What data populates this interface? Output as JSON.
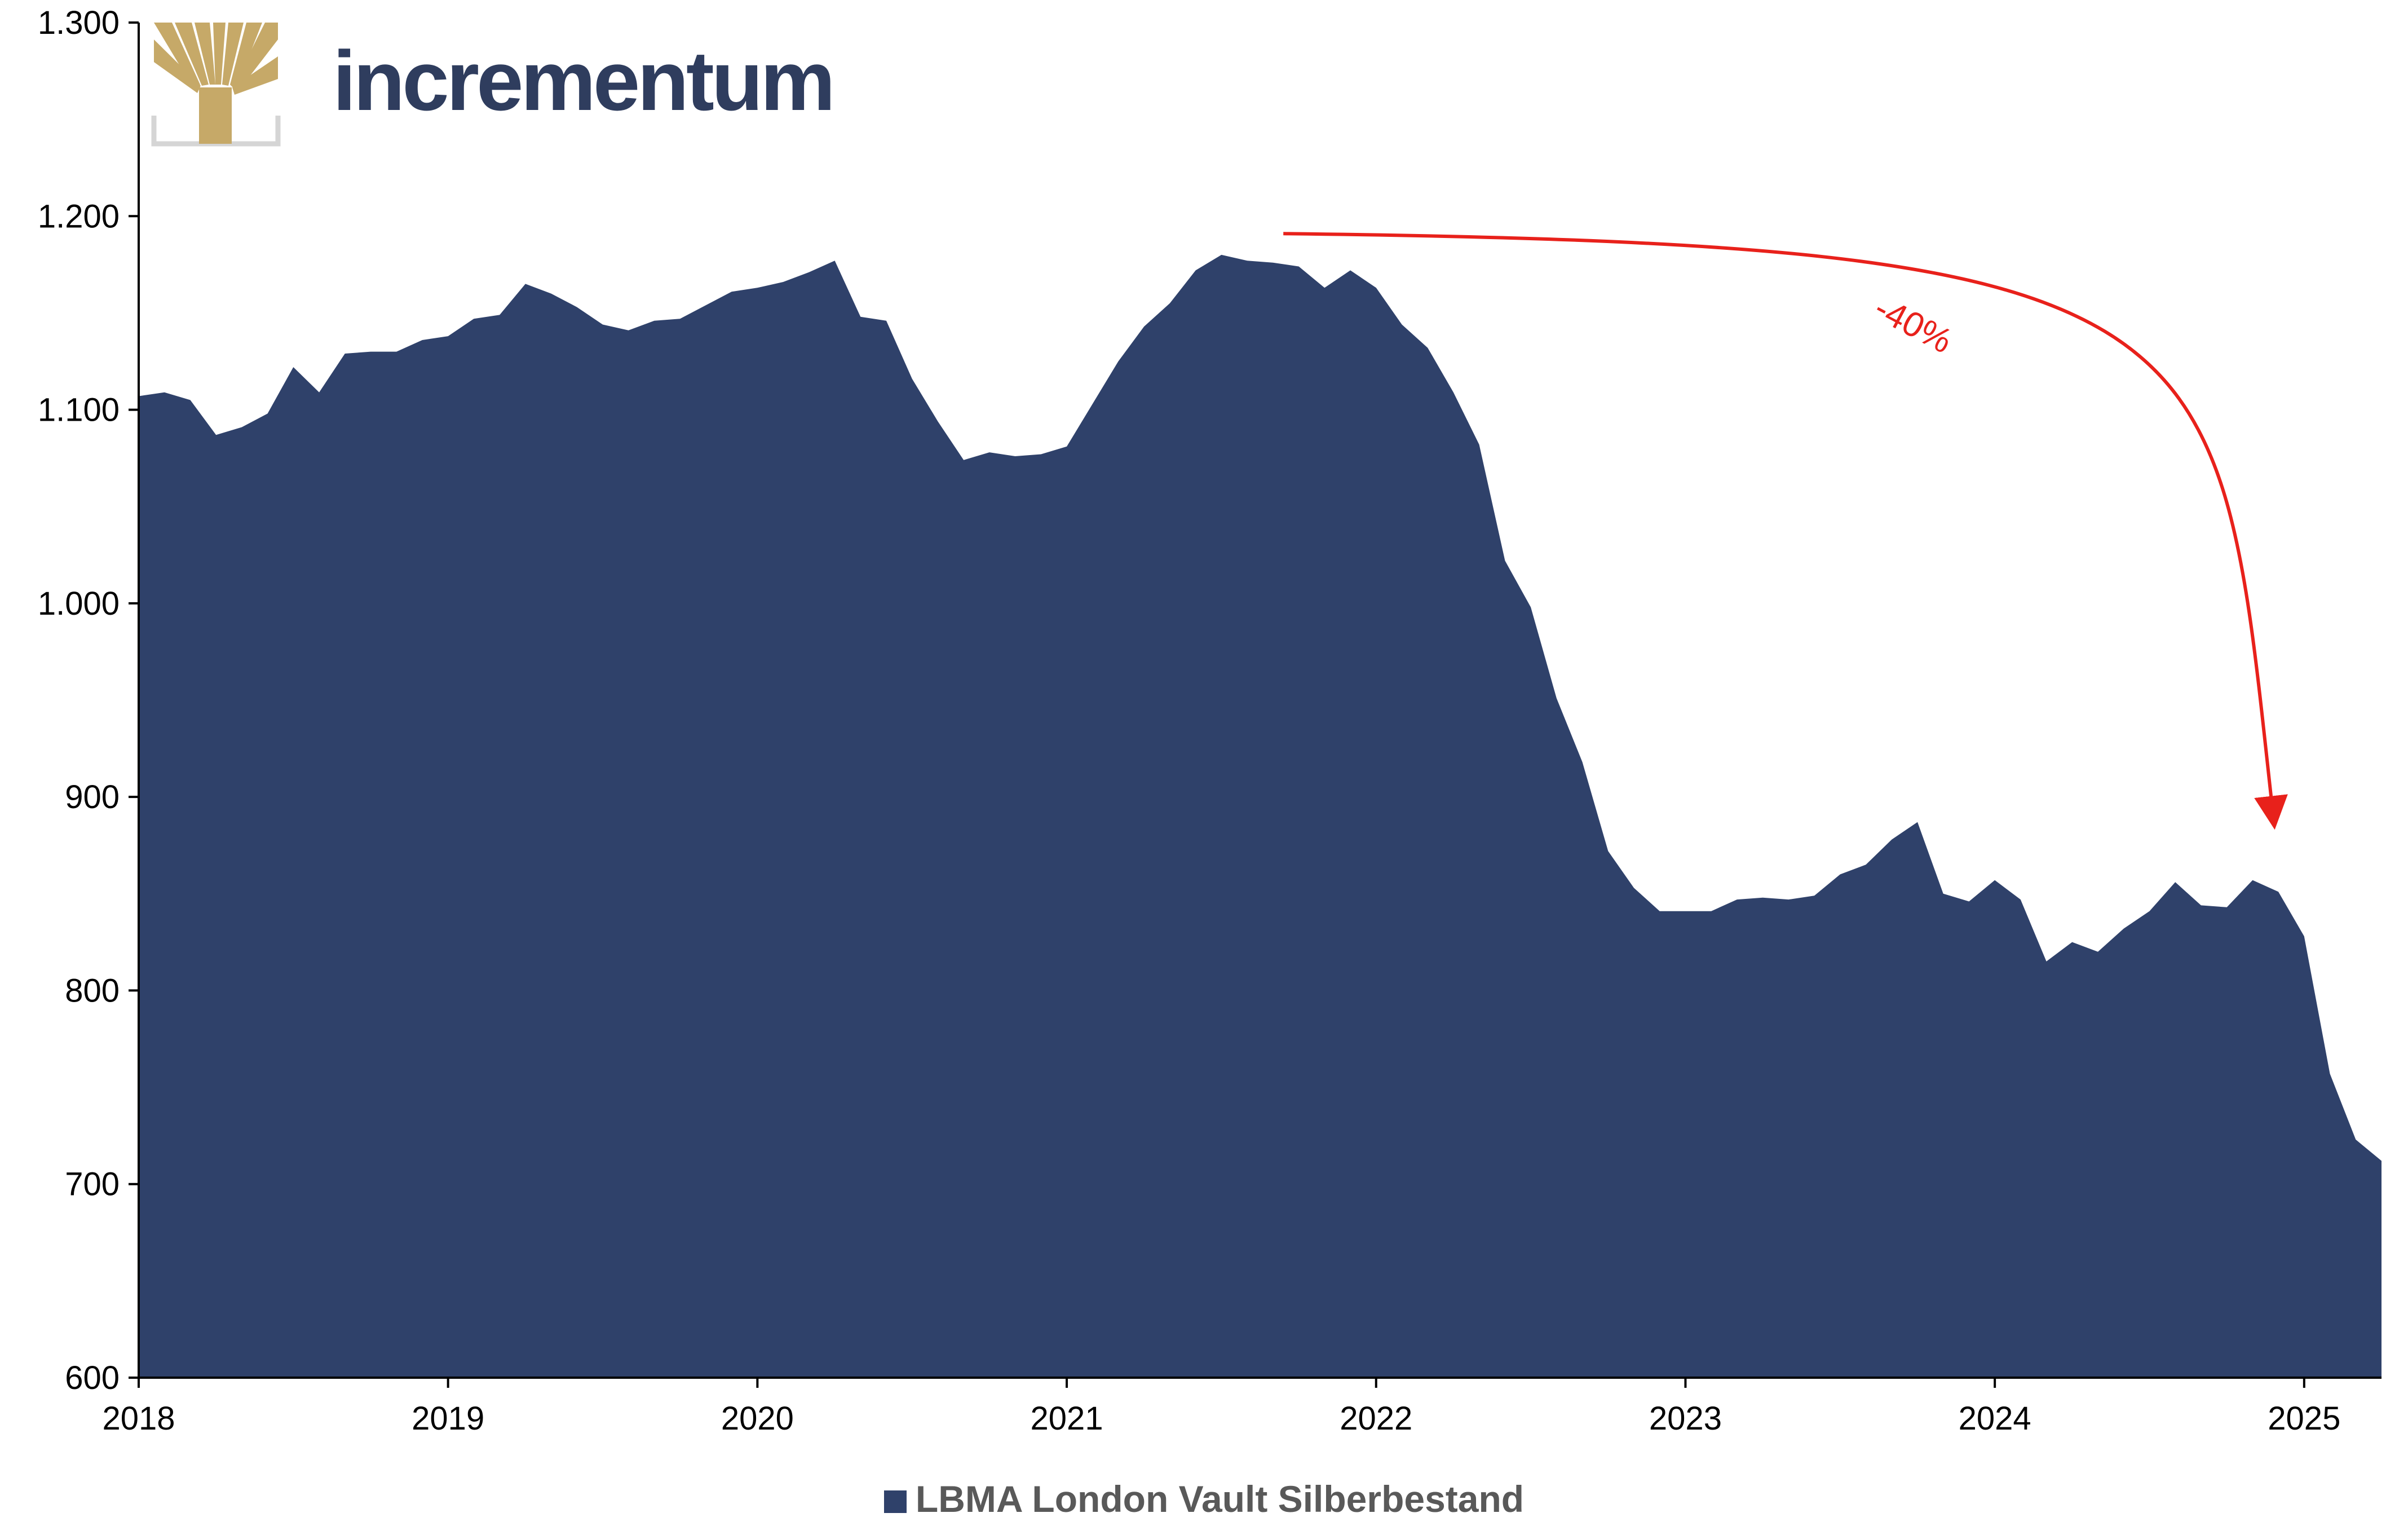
{
  "brand": {
    "name": "incrementum",
    "text_color": "#2f3d5e",
    "logo_color": "#c6a968",
    "logo_frame_color": "#d5d5d5"
  },
  "chart_data": {
    "type": "area",
    "title": "",
    "xlabel": "",
    "ylabel": "",
    "x_ticks": [
      "2018",
      "2019",
      "2020",
      "2021",
      "2022",
      "2023",
      "2024",
      "2025"
    ],
    "y_ticks": [
      "600",
      "700",
      "800",
      "900",
      "1.000",
      "1.100",
      "1.200",
      "1.300"
    ],
    "xlim": [
      2018.0,
      2025.25
    ],
    "ylim": [
      600,
      1300
    ],
    "grid": false,
    "legend_position": "bottom",
    "series": [
      {
        "name": "LBMA London Vault Silberbestand",
        "color": "#2f416a",
        "x": [
          2018.0,
          2018.0833,
          2018.1667,
          2018.25,
          2018.3333,
          2018.4167,
          2018.5,
          2018.5833,
          2018.6667,
          2018.75,
          2018.8333,
          2018.9167,
          2019.0,
          2019.0833,
          2019.1667,
          2019.25,
          2019.3333,
          2019.4167,
          2019.5,
          2019.5833,
          2019.6667,
          2019.75,
          2019.8333,
          2019.9167,
          2020.0,
          2020.0833,
          2020.1667,
          2020.25,
          2020.3333,
          2020.4167,
          2020.5,
          2020.5833,
          2020.6667,
          2020.75,
          2020.8333,
          2020.9167,
          2021.0,
          2021.0833,
          2021.1667,
          2021.25,
          2021.3333,
          2021.4167,
          2021.5,
          2021.5833,
          2021.6667,
          2021.75,
          2021.8333,
          2021.9167,
          2022.0,
          2022.0833,
          2022.1667,
          2022.25,
          2022.3333,
          2022.4167,
          2022.5,
          2022.5833,
          2022.6667,
          2022.75,
          2022.8333,
          2022.9167,
          2023.0,
          2023.0833,
          2023.1667,
          2023.25,
          2023.3333,
          2023.4167,
          2023.5,
          2023.5833,
          2023.6667,
          2023.75,
          2023.8333,
          2023.9167,
          2024.0,
          2024.0833,
          2024.1667,
          2024.25,
          2024.3333,
          2024.4167,
          2024.5,
          2024.5833,
          2024.6667,
          2024.75,
          2024.8333,
          2024.9167,
          2025.0,
          2025.0833,
          2025.1667,
          2025.25
        ],
        "values": [
          1107,
          1109,
          1105,
          1087,
          1091,
          1098,
          1122,
          1109,
          1129,
          1130,
          1130,
          1136,
          1138,
          1147,
          1149,
          1165,
          1160,
          1153,
          1144,
          1141,
          1146,
          1147,
          1154,
          1161,
          1163,
          1166,
          1171,
          1177,
          1148,
          1146,
          1116,
          1094,
          1074,
          1078,
          1076,
          1077,
          1081,
          1103,
          1125,
          1143,
          1155,
          1172,
          1180,
          1177,
          1176,
          1174,
          1163,
          1172,
          1163,
          1144,
          1132,
          1109,
          1082,
          1022,
          998,
          951,
          918,
          872,
          853,
          841,
          841,
          841,
          847,
          848,
          847,
          849,
          860,
          865,
          878,
          887,
          850,
          846,
          857,
          847,
          815,
          825,
          820,
          832,
          841,
          856,
          844,
          843,
          857,
          851,
          828,
          757,
          723,
          712
        ]
      }
    ],
    "annotations": [
      {
        "text": "-40%",
        "type": "curved-arrow",
        "from": [
          2021.7,
          1191
        ],
        "to": [
          2024.9,
          890
        ],
        "color": "#e8211b"
      }
    ]
  }
}
